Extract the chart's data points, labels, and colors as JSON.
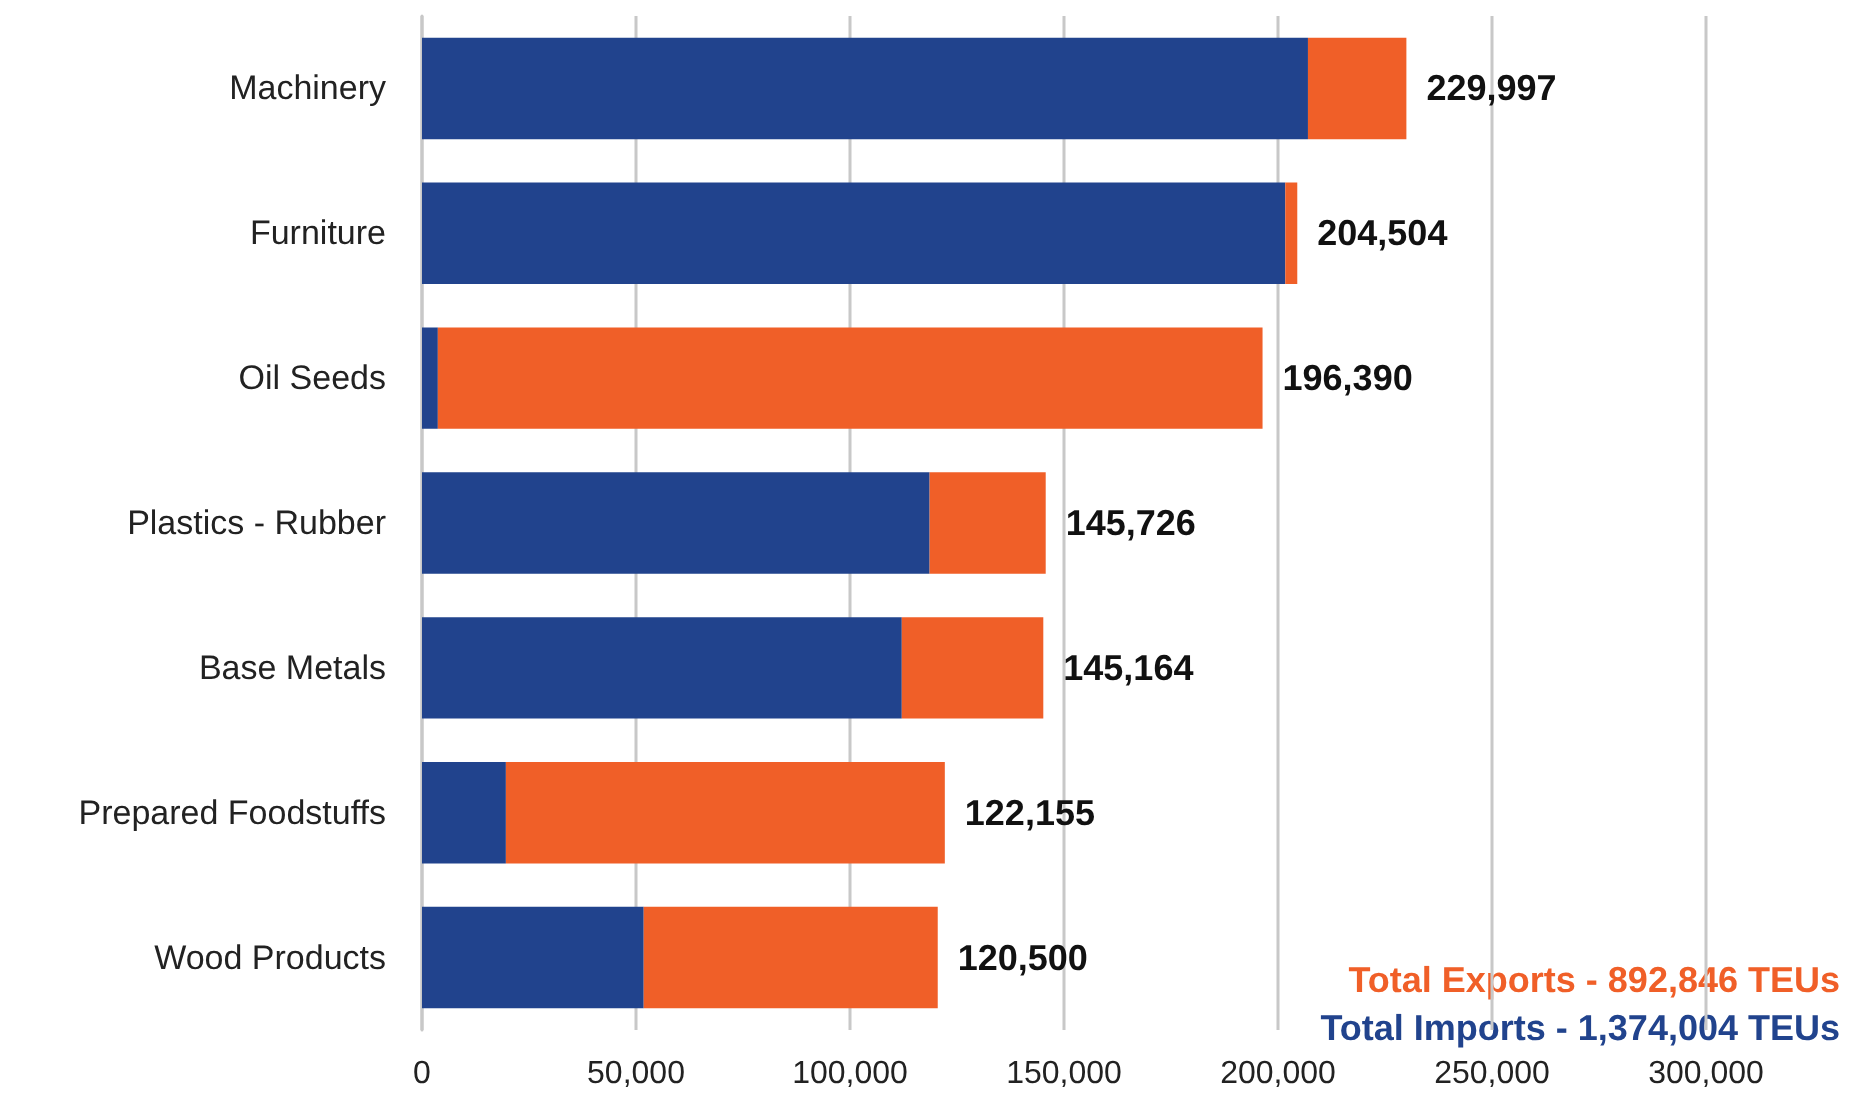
{
  "chart_data": {
    "type": "bar",
    "orientation": "horizontal",
    "stacked": true,
    "categories": [
      "Machinery",
      "Furniture",
      "Oil Seeds",
      "Plastics - Rubber",
      "Base Metals",
      "Prepared Foodstuffs",
      "Wood Products"
    ],
    "series": [
      {
        "color": "#21438d",
        "values": [
          207000,
          201700,
          3700,
          118600,
          112100,
          19600,
          51800
        ]
      },
      {
        "color": "#f05f28",
        "values": [
          22997,
          2804,
          192690,
          27126,
          33064,
          102555,
          68700
        ]
      }
    ],
    "totals": [
      "229,997",
      "204,504",
      "196,390",
      "145,726",
      "145,164",
      "122,155",
      "120,500"
    ],
    "xlim": [
      0,
      300000
    ],
    "xticks": [
      {
        "value": 0,
        "label": "0"
      },
      {
        "value": 50000,
        "label": "50,000"
      },
      {
        "value": 100000,
        "label": "100,000"
      },
      {
        "value": 150000,
        "label": "150,000"
      },
      {
        "value": 200000,
        "label": "200,000"
      },
      {
        "value": 250000,
        "label": "250,000"
      },
      {
        "value": 300000,
        "label": "300,000"
      }
    ],
    "grid": "x",
    "annotations": [
      "Total Exports - 892,846 TEUs",
      "Total Imports - 1,374,004 TEUs"
    ]
  }
}
